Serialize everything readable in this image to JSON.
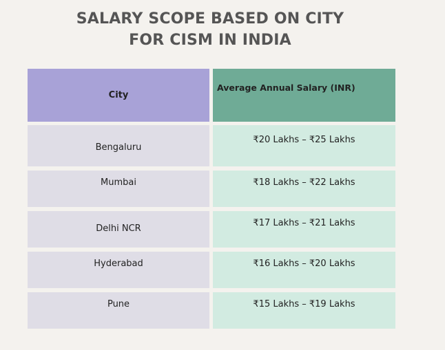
{
  "title": {
    "line1": "SALARY SCOPE BASED ON CITY",
    "line2": "FOR CISM IN INDIA"
  },
  "table": {
    "headers": {
      "city": "City",
      "salary": "Average Annual Salary (INR)"
    },
    "rows": [
      {
        "city": "Bengaluru",
        "salary": "₹20 Lakhs – ₹25 Lakhs"
      },
      {
        "city": "Mumbai",
        "salary": "₹18 Lakhs – ₹22 Lakhs"
      },
      {
        "city": "Delhi NCR",
        "salary": "₹17 Lakhs – ₹21 Lakhs"
      },
      {
        "city": "Hyderabad",
        "salary": "₹16 Lakhs – ₹20 Lakhs"
      },
      {
        "city": "Pune",
        "salary": "₹15 Lakhs – ₹19 Lakhs"
      }
    ]
  },
  "colors": {
    "background": "#f4f2ee",
    "city_header": "#a8a2d7",
    "salary_header": "#6fab96",
    "city_cell": "#dfdde6",
    "salary_cell": "#d2ebe1"
  }
}
